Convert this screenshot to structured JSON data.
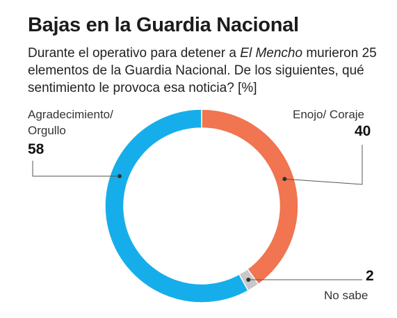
{
  "header": {
    "title": "Bajas en la Guardia Nacional",
    "subtitle_pre": "Durante el operativo para detener a ",
    "subtitle_em": "El Mencho",
    "subtitle_post": " murieron 25 elementos de la Guardia Nacional. De los siguientes, qué sentimiento le provoca esa noticia? [%]"
  },
  "chart_data": {
    "type": "pie",
    "variant": "donut",
    "title": "Bajas en la Guardia Nacional",
    "unit": "%",
    "slices": [
      {
        "label": "Enojo/ Coraje",
        "value": 40,
        "color": "#f07550"
      },
      {
        "label": "No sabe",
        "value": 2,
        "color": "#c8c8c8"
      },
      {
        "label": "Agradecimiento/ Orgullo",
        "value": 58,
        "color": "#16aeea"
      }
    ]
  },
  "labels": {
    "agradecimiento_line1": "Agradecimiento/",
    "agradecimiento_line2": "Orgullo",
    "agradecimiento_value": "58",
    "enojo": "Enojo/ Coraje",
    "enojo_value": "40",
    "nosabe": "No sabe",
    "nosabe_value": "2"
  }
}
